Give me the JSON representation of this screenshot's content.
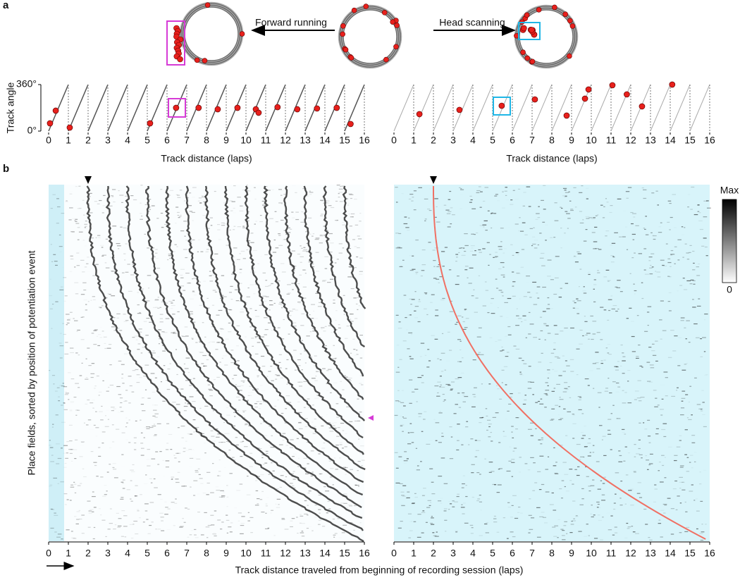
{
  "panel_labels": [
    "a",
    "b"
  ],
  "panel_a": {
    "arrow_labels": [
      "Forward running",
      "Head scanning"
    ],
    "ylabel": "Track angle",
    "xlabel": "Track distance (laps)",
    "xlim": [
      0,
      16
    ],
    "ylim": [
      0,
      360
    ],
    "xticks": [
      0,
      1,
      2,
      3,
      4,
      5,
      6,
      7,
      8,
      9,
      10,
      11,
      12,
      13,
      14,
      15,
      16
    ],
    "yticks": [
      {
        "value": 0,
        "label": "0°"
      },
      {
        "value": 360,
        "label": "360°"
      }
    ],
    "plots": [
      {
        "type": "scatter",
        "color": "#e8201c",
        "x": [
          0.07,
          0.36,
          1.07,
          5.14,
          6.46,
          7.6,
          8.57,
          9.57,
          10.5,
          10.64,
          11.6,
          12.6,
          13.6,
          14.6,
          15.3
        ],
        "y": [
          60,
          158,
          27,
          60,
          180,
          180,
          169,
          180,
          169,
          142,
          185,
          169,
          175,
          180,
          55
        ]
      },
      {
        "type": "scatter",
        "color": "#e8201c",
        "x": [
          1.29,
          3.32,
          5.46,
          7.14,
          8.75,
          9.68,
          9.86,
          11.07,
          11.8,
          12.57,
          14.1
        ],
        "y": [
          131,
          164,
          196,
          245,
          120,
          251,
          322,
          355,
          284,
          191,
          360
        ]
      }
    ]
  },
  "panel_b": {
    "ylabel": "Place fields, sorted by position of potentiation event",
    "xlabel": "Track distance traveled from beginning of recording session (laps)",
    "xlim": [
      0,
      16
    ],
    "xticks": [
      0,
      1,
      2,
      3,
      4,
      5,
      6,
      7,
      8,
      9,
      10,
      11,
      12,
      13,
      14,
      15,
      16
    ],
    "colorbar": {
      "max_label": "Max",
      "min": 0
    }
  }
}
